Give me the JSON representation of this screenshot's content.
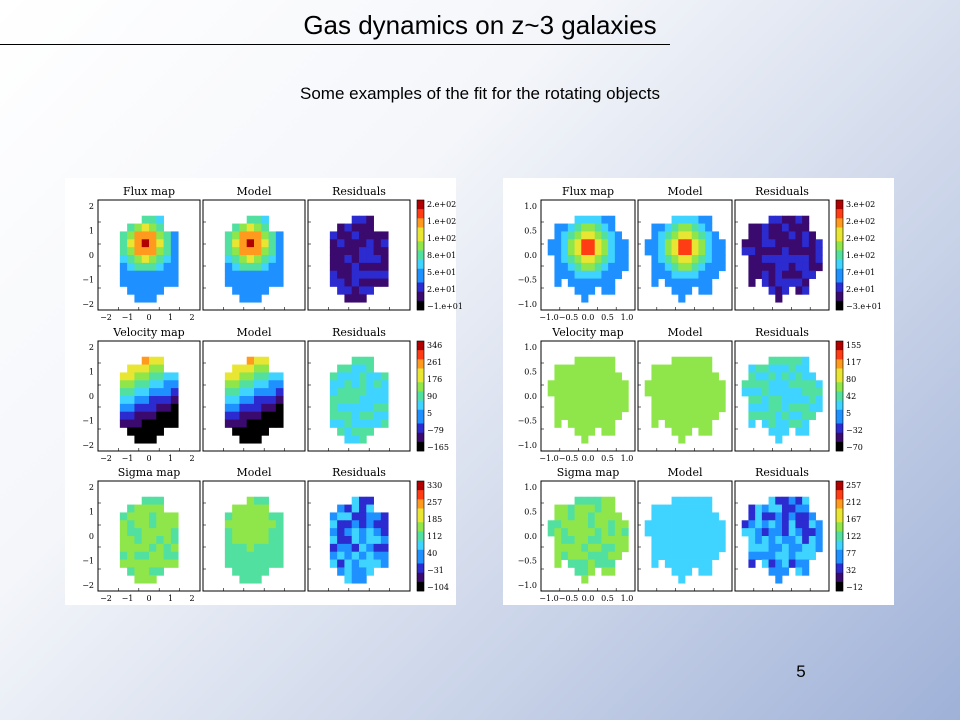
{
  "slide": {
    "title": "Gas dynamics on z~3 galaxies",
    "subtitle": "Some examples of the fit for the rotating objects",
    "page_number": "5"
  },
  "figures": [
    {
      "panel_titles": [
        "Model",
        "Residuals"
      ],
      "rows": [
        {
          "map_title": "Flux map",
          "colorbar_ticks": [
            "2.e+02",
            "1.e+02",
            "1.e+02",
            "8.e+01",
            "5.e+01",
            "2.e+01",
            "−1.e+01"
          ]
        },
        {
          "map_title": "Velocity map",
          "colorbar_ticks": [
            "346",
            "261",
            "176",
            "90",
            "5",
            "−79",
            "−165"
          ]
        },
        {
          "map_title": "Sigma map",
          "colorbar_ticks": [
            "330",
            "257",
            "185",
            "112",
            "40",
            "−31",
            "−104"
          ]
        }
      ],
      "y_ticks": [
        "2",
        "1",
        "0",
        "−1",
        "−2"
      ],
      "x_ticks": [
        "−2",
        "−1",
        "0",
        "1",
        "2"
      ]
    },
    {
      "panel_titles": [
        "Model",
        "Residuals"
      ],
      "rows": [
        {
          "map_title": "Flux map",
          "colorbar_ticks": [
            "3.e+02",
            "2.e+02",
            "2.e+02",
            "1.e+02",
            "7.e+01",
            "2.e+01",
            "−3.e+01"
          ]
        },
        {
          "map_title": "Velocity map",
          "colorbar_ticks": [
            "155",
            "117",
            "80",
            "42",
            "5",
            "−32",
            "−70"
          ]
        },
        {
          "map_title": "Sigma map",
          "colorbar_ticks": [
            "257",
            "212",
            "167",
            "122",
            "77",
            "32",
            "−12"
          ]
        }
      ],
      "y_ticks": [
        "1.0",
        "0.5",
        "0.0",
        "−0.5",
        "−1.0"
      ],
      "x_ticks": [
        "−1.0",
        "−0.5",
        "0.0",
        "0.5",
        "1.0"
      ]
    }
  ],
  "colors": {
    "colormap": [
      "#000000",
      "#3a0a6e",
      "#2b2bd0",
      "#1e90ff",
      "#3fd4ff",
      "#52e0a0",
      "#8fe64a",
      "#e8e632",
      "#ff9a1e",
      "#ff3c14",
      "#b00000"
    ]
  }
}
